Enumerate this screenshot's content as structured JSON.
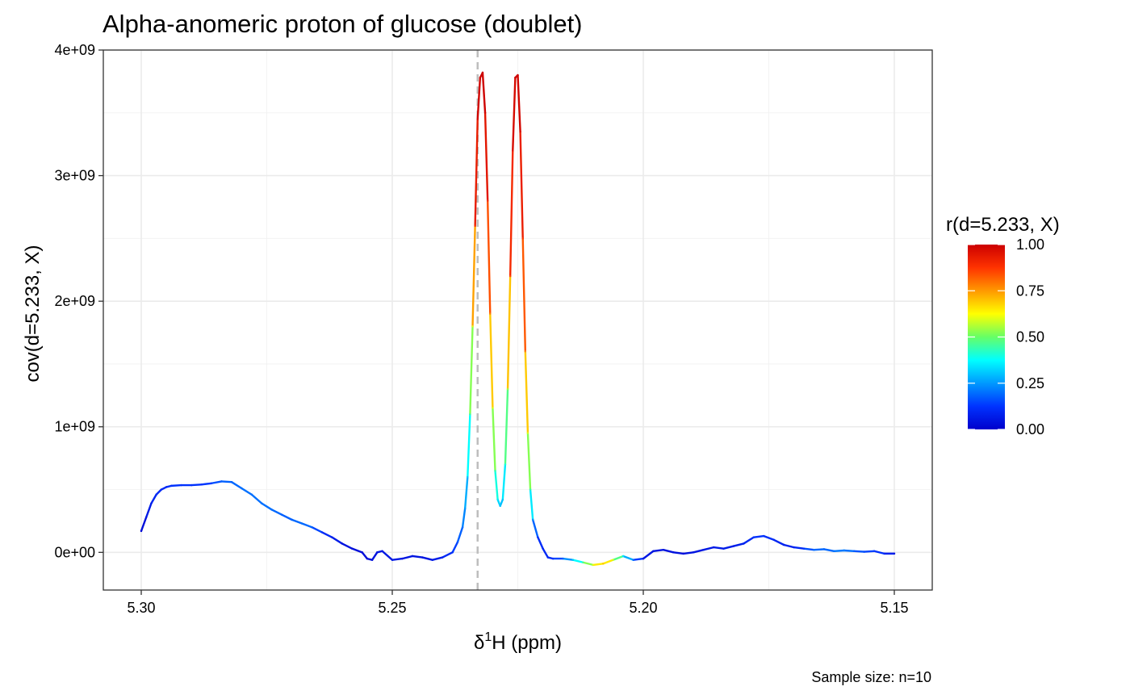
{
  "chart_data": {
    "type": "line",
    "title": "Alpha-anomeric proton of glucose (doublet)",
    "xlabel_prefix": "δ",
    "xlabel_sup": "1",
    "xlabel_suffix": "H (ppm)",
    "ylabel": "cov(d=5.233, X)",
    "caption": "Sample size: n=10",
    "x_reversed": true,
    "xlim": [
      5.3,
      5.15
    ],
    "ylim": [
      -300000000,
      4000000000
    ],
    "x_ticks": [
      5.3,
      5.25,
      5.2,
      5.15
    ],
    "x_tick_labels": [
      "5.30",
      "5.25",
      "5.20",
      "5.15"
    ],
    "x_minor_ticks": [
      5.275,
      5.225,
      5.175
    ],
    "y_ticks": [
      0,
      1000000000,
      2000000000,
      3000000000,
      4000000000
    ],
    "y_tick_labels": [
      "0e+00",
      "1e+09",
      "2e+09",
      "3e+09",
      "4e+09"
    ],
    "y_minor_ticks": [
      500000000,
      1500000000,
      2500000000,
      3500000000
    ],
    "reference_line_x": 5.233,
    "grid": true,
    "series": [
      {
        "x": [
          5.3,
          5.299,
          5.298,
          5.297,
          5.296,
          5.295,
          5.294,
          5.292,
          5.29,
          5.288,
          5.286,
          5.284,
          5.282,
          5.28,
          5.278,
          5.276,
          5.274,
          5.272,
          5.27,
          5.268,
          5.266,
          5.264,
          5.262,
          5.26,
          5.258,
          5.256,
          5.255,
          5.254,
          5.253,
          5.252,
          5.25,
          5.248,
          5.246,
          5.244,
          5.242,
          5.24,
          5.238,
          5.237,
          5.236,
          5.2355,
          5.235,
          5.2345,
          5.234,
          5.2335,
          5.233,
          5.2325,
          5.232,
          5.2315,
          5.231,
          5.2305,
          5.23,
          5.2295,
          5.229,
          5.2285,
          5.228,
          5.2275,
          5.227,
          5.2265,
          5.226,
          5.2255,
          5.225,
          5.2245,
          5.224,
          5.2235,
          5.223,
          5.2225,
          5.222,
          5.221,
          5.22,
          5.219,
          5.218,
          5.216,
          5.214,
          5.212,
          5.21,
          5.208,
          5.206,
          5.204,
          5.202,
          5.2,
          5.198,
          5.196,
          5.194,
          5.192,
          5.19,
          5.188,
          5.186,
          5.184,
          5.182,
          5.18,
          5.178,
          5.176,
          5.174,
          5.172,
          5.17,
          5.168,
          5.166,
          5.164,
          5.162,
          5.16,
          5.158,
          5.156,
          5.154,
          5.152,
          5.15
        ],
        "y": [
          170000000,
          280000000,
          390000000,
          460000000,
          500000000,
          520000000,
          530000000,
          535000000,
          535000000,
          540000000,
          550000000,
          565000000,
          560000000,
          510000000,
          460000000,
          390000000,
          340000000,
          300000000,
          260000000,
          230000000,
          200000000,
          160000000,
          120000000,
          70000000,
          30000000,
          0,
          -50000000,
          -60000000,
          0,
          10000000,
          -60000000,
          -50000000,
          -30000000,
          -40000000,
          -60000000,
          -40000000,
          0,
          80000000,
          200000000,
          350000000,
          600000000,
          1100000000,
          1800000000,
          2600000000,
          3450000000,
          3780000000,
          3820000000,
          3500000000,
          2800000000,
          1900000000,
          1150000000,
          650000000,
          420000000,
          370000000,
          420000000,
          700000000,
          1300000000,
          2200000000,
          3200000000,
          3780000000,
          3800000000,
          3350000000,
          2500000000,
          1600000000,
          950000000,
          500000000,
          260000000,
          120000000,
          30000000,
          -40000000,
          -50000000,
          -50000000,
          -60000000,
          -80000000,
          -100000000,
          -90000000,
          -60000000,
          -30000000,
          -60000000,
          -50000000,
          10000000,
          20000000,
          0,
          -10000000,
          0,
          20000000,
          40000000,
          30000000,
          50000000,
          70000000,
          120000000,
          130000000,
          100000000,
          60000000,
          40000000,
          30000000,
          20000000,
          25000000,
          10000000,
          15000000,
          10000000,
          5000000,
          10000000,
          -10000000,
          -10000000
        ],
        "r": [
          0.02,
          0.05,
          0.08,
          0.1,
          0.1,
          0.1,
          0.12,
          0.12,
          0.12,
          0.12,
          0.14,
          0.18,
          0.18,
          0.2,
          0.2,
          0.2,
          0.2,
          0.18,
          0.18,
          0.2,
          0.18,
          0.12,
          0.08,
          0.05,
          0.04,
          0.03,
          0.03,
          0.04,
          0.05,
          0.06,
          0.06,
          0.06,
          0.05,
          0.05,
          0.06,
          0.08,
          0.12,
          0.16,
          0.2,
          0.25,
          0.3,
          0.45,
          0.6,
          0.88,
          0.98,
          1.0,
          1.0,
          0.99,
          0.9,
          0.78,
          0.6,
          0.45,
          0.35,
          0.3,
          0.3,
          0.4,
          0.55,
          0.85,
          0.95,
          1.0,
          1.0,
          0.97,
          0.88,
          0.78,
          0.6,
          0.45,
          0.25,
          0.12,
          0.1,
          0.1,
          0.12,
          0.18,
          0.3,
          0.45,
          0.6,
          0.7,
          0.6,
          0.35,
          0.2,
          0.06,
          0.05,
          0.05,
          0.04,
          0.04,
          0.05,
          0.06,
          0.06,
          0.07,
          0.07,
          0.08,
          0.12,
          0.12,
          0.1,
          0.08,
          0.08,
          0.12,
          0.2,
          0.18,
          0.2,
          0.22,
          0.18,
          0.15,
          0.14,
          0.1,
          0.06
        ]
      }
    ],
    "legend": {
      "title": "r(d=5.233, X)",
      "placement": "right",
      "limits": [
        0,
        1
      ],
      "breaks": [
        0,
        0.25,
        0.5,
        0.75,
        1
      ],
      "labels": [
        "0.00",
        "0.25",
        "0.50",
        "0.75",
        "1.00"
      ],
      "colors": [
        "#0000cc",
        "#0033ff",
        "#0099ff",
        "#00ffff",
        "#66ff66",
        "#ffff00",
        "#ff9900",
        "#ff3300",
        "#cc0000"
      ]
    },
    "colors": {
      "reference_line": "#bebebe",
      "panel_border": "#333333",
      "grid_major": "#ebebeb",
      "grid_minor": "#f2f2f2"
    }
  }
}
